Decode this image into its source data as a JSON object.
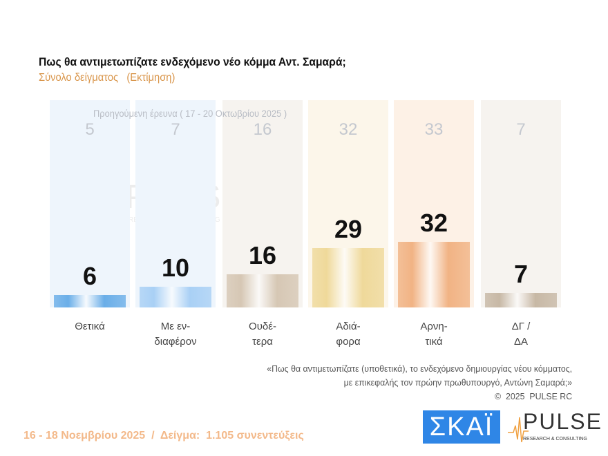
{
  "chart_data": {
    "type": "bar",
    "title": "Πως θα αντιμετωπίζατε ενδεχόμενο νέο κόμμα Αντ. Σαμαρά;",
    "subtitle": "Σύνολο δείγματος   (Εκτίμηση)",
    "categories": [
      "Θετικά",
      "Με εν-\nδιαφέρον",
      "Ουδέ-\nτερα",
      "Αδιά-\nφορα",
      "Αρνη-\nτικά",
      "ΔΓ /\nΔΑ"
    ],
    "values": [
      6,
      10,
      16,
      29,
      32,
      7
    ],
    "previous_label": "Προηγούμενη έρευνα ( 17 - 20 Οκτωβρίου 2025 )",
    "previous_values": [
      "5",
      "7",
      "16",
      "32",
      "33",
      "7"
    ],
    "value_labels": [
      "6",
      "10",
      "16",
      "29",
      "32",
      "7"
    ],
    "ylim": [
      0,
      100
    ],
    "grid": false,
    "colors": [
      "#6aaee8",
      "#a9d0f5",
      "#d6c7b4",
      "#efd99a",
      "#f1b384",
      "#c7b8a5"
    ],
    "panel_colors": [
      "#eef5fc",
      "#eef5fc",
      "#f6f3ef",
      "#fcf6ea",
      "#fdf1e6",
      "#f6f3ef"
    ]
  },
  "note": "«Πως θα αντιμετωπίζατε (υποθετικά), το ενδεχόμενο δημιουργίας νέου κόμματος,\nμε επικεφαλής τον πρώην πρωθυπουργό, Αντώνη Σαμαρά;»\n©  2025  PULSE RC",
  "footer": "16 - 18 Νοεμβρίου 2025  /  Δείγμα:  1.105 συνεντεύξεις",
  "logos": {
    "skai": "ΣΚΑΪ",
    "pulse": "PULSE",
    "pulse_sub": "RESEARCH & CONSULTING"
  }
}
